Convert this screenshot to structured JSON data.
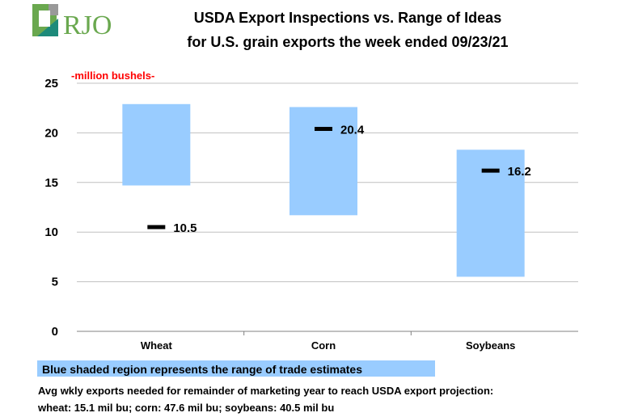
{
  "logo_text": "RJO",
  "title_line1": "USDA Export Inspections vs. Range of Ideas",
  "title_line2": "for U.S. grain exports the week ended 09/23/21",
  "footnote_box": "Blue shaded region represents the range of trade estimates",
  "footer_line1": "Avg wkly exports needed for remainder of marketing year to reach USDA export projection:",
  "footer_line2": "wheat: 15.1 mil bu; corn: 47.6 mil bu; soybeans: 40.5 mil bu",
  "colors": {
    "range": "#99ccff",
    "marker": "#000000",
    "unit_label": "#ff0000",
    "grid": "#c0c0c0"
  },
  "chart_data": {
    "type": "range-bar",
    "title": "USDA Export Inspections vs. Range of Ideas for U.S. grain exports the week ended 09/23/21",
    "ylabel": "-million bushels-",
    "ylim": [
      0,
      25
    ],
    "yticks": [
      0,
      5,
      10,
      15,
      20,
      25
    ],
    "grid": true,
    "categories": [
      "Wheat",
      "Corn",
      "Soybeans"
    ],
    "range_low": [
      14.7,
      11.7,
      5.5
    ],
    "range_high": [
      22.9,
      22.6,
      18.3
    ],
    "actual": [
      10.5,
      20.4,
      16.2
    ],
    "actual_labels": [
      "10.5",
      "20.4",
      "16.2"
    ]
  }
}
